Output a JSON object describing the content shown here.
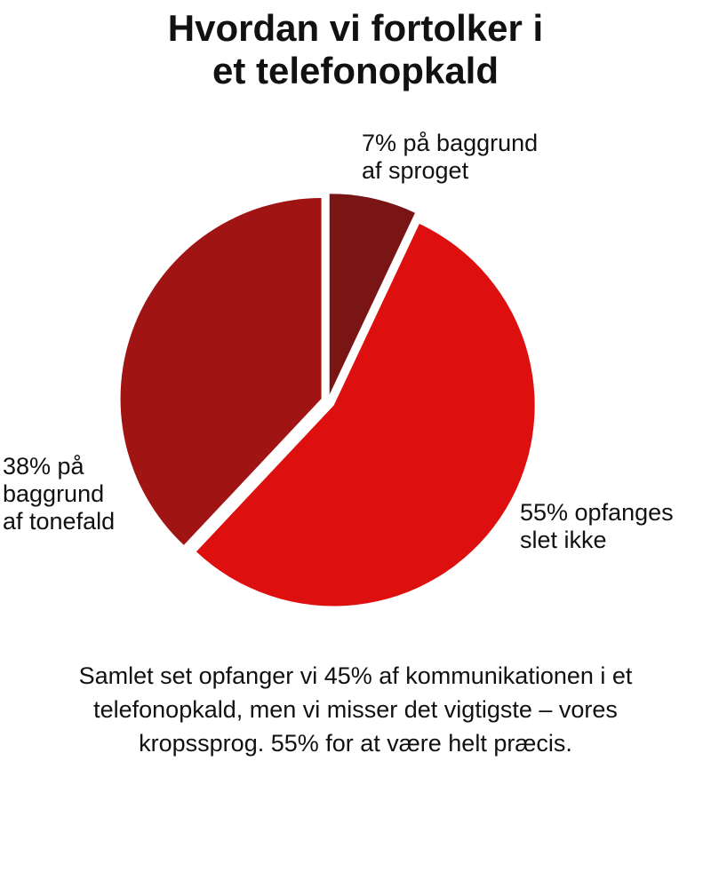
{
  "title_lines": [
    "Hvordan vi fortolker i",
    "et telefonopkald"
  ],
  "chart_data": {
    "type": "pie",
    "title": "Hvordan vi fortolker i et telefonopkald",
    "slices": [
      {
        "label_lines": [
          "7% på baggrund",
          "af sproget"
        ],
        "value": 7,
        "color": "#7a1515"
      },
      {
        "label_lines": [
          "55% opfanges",
          "slet ikke"
        ],
        "value": 55,
        "color": "#dd0f0f"
      },
      {
        "label_lines": [
          "38% på",
          "baggrund",
          "af tonefald"
        ],
        "value": 38,
        "color": "#a01414"
      }
    ]
  },
  "caption_lines": [
    "Samlet set opfanger vi 45% af kommunikationen i et",
    "telefonopkald, men vi misser det vigtigste – vores",
    "kropssprog. 55% for at være helt præcis."
  ]
}
